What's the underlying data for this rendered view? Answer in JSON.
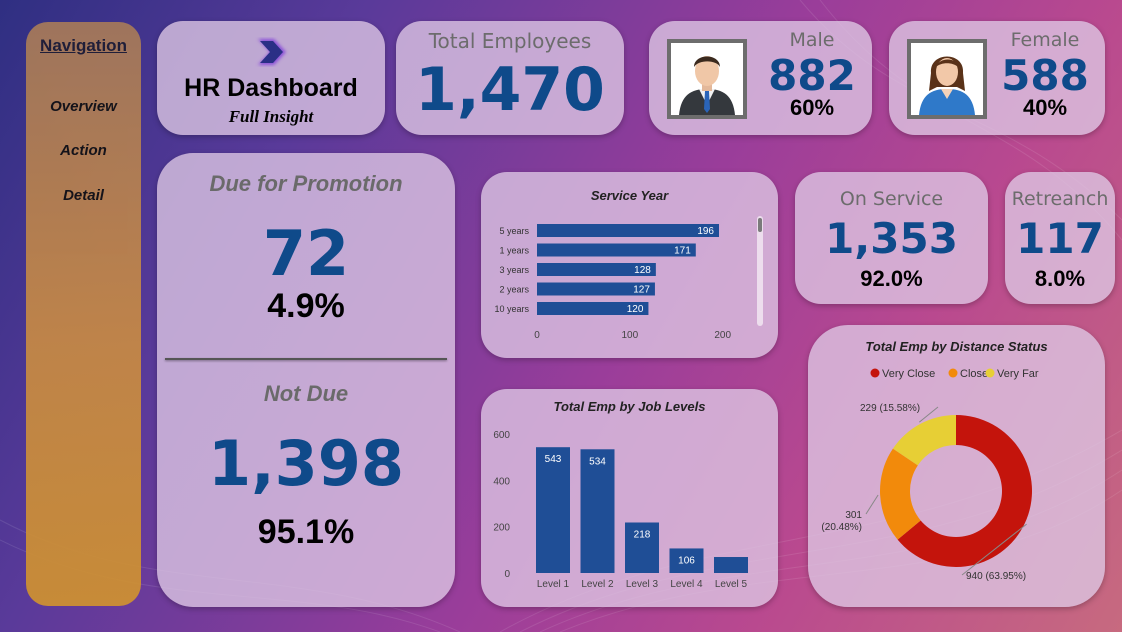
{
  "navigation": {
    "title": "Navigation",
    "items": [
      "Overview",
      "Action",
      "Detail"
    ]
  },
  "header": {
    "title": "HR Dashboard",
    "subtitle": "Full Insight"
  },
  "total_employees": {
    "label": "Total Employees",
    "value": "1,470"
  },
  "male": {
    "label": "Male",
    "value": "882",
    "pct": "60%"
  },
  "female": {
    "label": "Female",
    "value": "588",
    "pct": "40%"
  },
  "promotion": {
    "due_label": "Due for Promotion",
    "due_value": "72",
    "due_pct": "4.9%",
    "notdue_label": "Not Due",
    "notdue_value": "1,398",
    "notdue_pct": "95.1%"
  },
  "on_service": {
    "label": "On Service",
    "value": "1,353",
    "pct": "92.0%"
  },
  "retreach": {
    "label": "Retreanch",
    "value": "117",
    "pct": "8.0%"
  },
  "colors": {
    "accent_blue": "#0f4a8a",
    "bar_blue": "#1f4e96",
    "very_close": "#c4140c",
    "close": "#f28a0b",
    "very_far": "#e7cf35"
  },
  "chart_data": [
    {
      "type": "bar",
      "orientation": "horizontal",
      "title": "Service Year",
      "categories": [
        "5 years",
        "1 years",
        "3 years",
        "2 years",
        "10 years"
      ],
      "values": [
        196,
        171,
        128,
        127,
        120
      ],
      "xticks": [
        "0",
        "100",
        "200"
      ],
      "xlim": [
        0,
        210
      ]
    },
    {
      "type": "bar",
      "title": "Total Emp by Job Levels",
      "categories": [
        "Level 1",
        "Level 2",
        "Level 3",
        "Level 4",
        "Level 5"
      ],
      "values": [
        543,
        534,
        218,
        106,
        69
      ],
      "labels": [
        "543",
        "534",
        "218",
        "106",
        ""
      ],
      "yticks": [
        "0",
        "200",
        "400",
        "600"
      ],
      "ylim": [
        0,
        600
      ]
    },
    {
      "type": "pie",
      "donut": true,
      "title": "Total Emp by Distance Status",
      "legend": [
        "Very Close",
        "Close",
        "Very Far"
      ],
      "values": [
        940,
        301,
        229
      ],
      "labels": [
        "940 (63.95%)",
        "301\n(20.48%)",
        "229 (15.58%)"
      ]
    }
  ]
}
